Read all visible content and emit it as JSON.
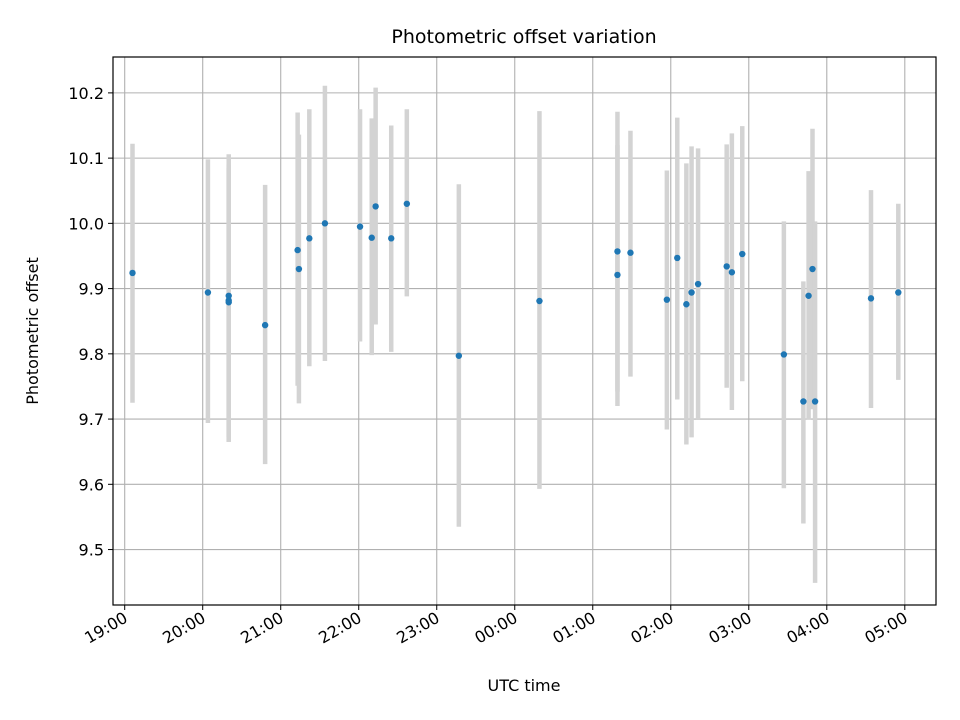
{
  "chart_data": {
    "type": "scatter",
    "title": "Photometric offset variation",
    "xlabel": "UTC time",
    "ylabel": "Photometric offset",
    "x_is_time": true,
    "xlim": [
      "18:51",
      "05:24"
    ],
    "ylim": [
      9.415,
      10.255
    ],
    "grid": true,
    "colors": {
      "point": "#1f77b4",
      "errorbar": "#d3d3d3",
      "grid": "#b0b0b0"
    },
    "x_ticks": [
      "19:00",
      "20:00",
      "21:00",
      "22:00",
      "23:00",
      "00:00",
      "01:00",
      "02:00",
      "03:00",
      "04:00",
      "05:00"
    ],
    "y_ticks": [
      "9.5",
      "9.6",
      "9.7",
      "9.8",
      "9.9",
      "10.0",
      "10.1",
      "10.2"
    ],
    "points": [
      {
        "t": "19:06",
        "y": 9.924,
        "lo": 9.725,
        "hi": 10.122
      },
      {
        "t": "20:04",
        "y": 9.894,
        "lo": 9.694,
        "hi": 10.098
      },
      {
        "t": "20:20",
        "y": 9.889,
        "lo": 9.665,
        "hi": 10.106
      },
      {
        "t": "20:20",
        "y": 9.882,
        "lo": 9.665,
        "hi": 10.09
      },
      {
        "t": "20:20",
        "y": 9.879,
        "lo": 9.672,
        "hi": 10.085
      },
      {
        "t": "20:48",
        "y": 9.844,
        "lo": 9.631,
        "hi": 10.059
      },
      {
        "t": "21:13",
        "y": 9.959,
        "lo": 9.751,
        "hi": 10.17
      },
      {
        "t": "21:14",
        "y": 9.93,
        "lo": 9.724,
        "hi": 10.136
      },
      {
        "t": "21:22",
        "y": 9.977,
        "lo": 9.781,
        "hi": 10.175
      },
      {
        "t": "21:34",
        "y": 10.0,
        "lo": 9.789,
        "hi": 10.211
      },
      {
        "t": "22:01",
        "y": 9.995,
        "lo": 9.819,
        "hi": 10.175
      },
      {
        "t": "22:10",
        "y": 9.978,
        "lo": 9.798,
        "hi": 10.161
      },
      {
        "t": "22:13",
        "y": 10.026,
        "lo": 9.845,
        "hi": 10.208
      },
      {
        "t": "22:25",
        "y": 9.977,
        "lo": 9.803,
        "hi": 10.15
      },
      {
        "t": "22:37",
        "y": 10.03,
        "lo": 9.888,
        "hi": 10.175
      },
      {
        "t": "23:17",
        "y": 9.797,
        "lo": 9.535,
        "hi": 10.06
      },
      {
        "t": "00:19",
        "y": 9.881,
        "lo": 9.593,
        "hi": 10.172
      },
      {
        "t": "01:19",
        "y": 9.957,
        "lo": 9.742,
        "hi": 10.171
      },
      {
        "t": "01:19",
        "y": 9.921,
        "lo": 9.72,
        "hi": 10.12
      },
      {
        "t": "01:29",
        "y": 9.955,
        "lo": 9.765,
        "hi": 10.142
      },
      {
        "t": "01:57",
        "y": 9.883,
        "lo": 9.684,
        "hi": 10.081
      },
      {
        "t": "02:05",
        "y": 9.947,
        "lo": 9.73,
        "hi": 10.162
      },
      {
        "t": "02:12",
        "y": 9.876,
        "lo": 9.661,
        "hi": 10.092
      },
      {
        "t": "02:16",
        "y": 9.894,
        "lo": 9.672,
        "hi": 10.118
      },
      {
        "t": "02:21",
        "y": 9.907,
        "lo": 9.7,
        "hi": 10.115
      },
      {
        "t": "02:43",
        "y": 9.934,
        "lo": 9.748,
        "hi": 10.121
      },
      {
        "t": "02:47",
        "y": 9.925,
        "lo": 9.714,
        "hi": 10.138
      },
      {
        "t": "02:55",
        "y": 9.953,
        "lo": 9.758,
        "hi": 10.149
      },
      {
        "t": "03:27",
        "y": 9.799,
        "lo": 9.594,
        "hi": 10.003
      },
      {
        "t": "03:42",
        "y": 9.727,
        "lo": 9.54,
        "hi": 9.911
      },
      {
        "t": "03:46",
        "y": 9.889,
        "lo": 9.699,
        "hi": 10.08
      },
      {
        "t": "03:49",
        "y": 9.93,
        "lo": 9.715,
        "hi": 10.145
      },
      {
        "t": "03:51",
        "y": 9.727,
        "lo": 9.449,
        "hi": 10.003
      },
      {
        "t": "04:34",
        "y": 9.885,
        "lo": 9.717,
        "hi": 10.051
      },
      {
        "t": "04:55",
        "y": 9.894,
        "lo": 9.76,
        "hi": 10.03
      }
    ]
  }
}
